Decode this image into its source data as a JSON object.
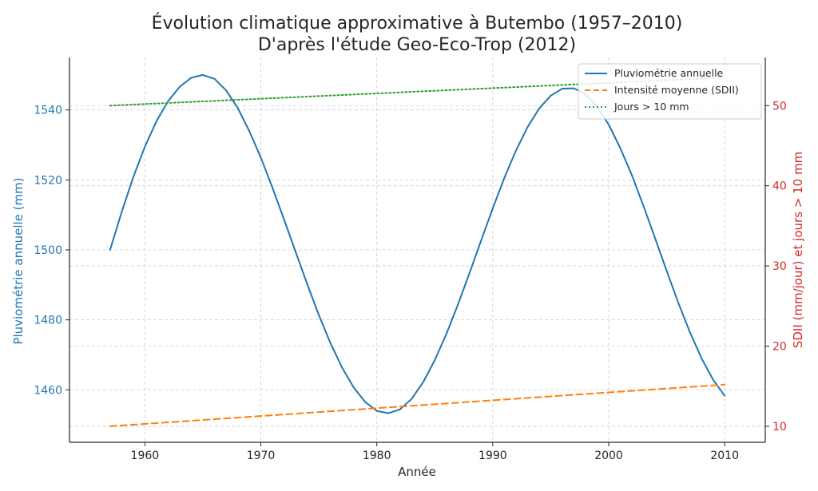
{
  "chart_data": {
    "type": "line",
    "title": "Évolution climatique approximative à Butembo (1957–2010)",
    "subtitle": "D'après l'étude Geo-Eco-Trop (2012)",
    "xlabel": "Année",
    "ylabel_left": "Pluviométrie annuelle (mm)",
    "ylabel_right": "SDII (mm/jour) et jours > 10 mm",
    "xlim": [
      1953.5,
      2013.5
    ],
    "ylim_left": [
      1445,
      1555
    ],
    "ylim_right": [
      8,
      56
    ],
    "x_ticks": [
      "1960",
      "1970",
      "1980",
      "1990",
      "2000",
      "2010"
    ],
    "y_left_ticks": [
      "1460",
      "1480",
      "1500",
      "1520",
      "1540"
    ],
    "y_right_ticks": [
      "10",
      "20",
      "30",
      "40",
      "50"
    ],
    "grid": true,
    "legend_position": "top-right",
    "colors": {
      "rainfall": "#1f77b4",
      "sdii": "#ff7f0e",
      "days": "#2ca02c",
      "left_axis": "#1f77b4",
      "right_axis": "#d62728"
    },
    "series": [
      {
        "name": "Pluviométrie annuelle",
        "axis": "left",
        "style": "solid",
        "x": [
          1957,
          1958,
          1959,
          1960,
          1961,
          1962,
          1963,
          1964,
          1965,
          1966,
          1967,
          1968,
          1969,
          1970,
          1971,
          1972,
          1973,
          1974,
          1975,
          1976,
          1977,
          1978,
          1979,
          1980,
          1981,
          1982,
          1983,
          1984,
          1985,
          1986,
          1987,
          1988,
          1989,
          1990,
          1991,
          1992,
          1993,
          1994,
          1995,
          1996,
          1997,
          1998,
          1999,
          2000,
          2001,
          2002,
          2003,
          2004,
          2005,
          2006,
          2007,
          2008,
          2009,
          2010
        ],
        "values": [
          1500,
          1510.8,
          1520.8,
          1529.5,
          1536.8,
          1542.5,
          1546.6,
          1549.2,
          1550.0,
          1548.9,
          1545.6,
          1540.6,
          1534.0,
          1526.4,
          1517.8,
          1508.7,
          1499.4,
          1490.2,
          1481.4,
          1473.4,
          1466.4,
          1460.7,
          1456.5,
          1454.0,
          1453.3,
          1454.4,
          1457.4,
          1462.2,
          1468.5,
          1476.0,
          1484.4,
          1493.4,
          1502.7,
          1511.9,
          1520.6,
          1528.4,
          1535.1,
          1540.4,
          1544.1,
          1546.1,
          1546.2,
          1544.5,
          1541.0,
          1535.8,
          1529.1,
          1521.3,
          1512.5,
          1503.3,
          1494.0,
          1484.9,
          1476.5,
          1469.0,
          1462.9,
          1458.3
        ]
      },
      {
        "name": "Intensité moyenne (SDII)",
        "axis": "right",
        "style": "dashed",
        "x": [
          1957,
          2010
        ],
        "values": [
          10,
          15.2
        ]
      },
      {
        "name": "Jours > 10 mm",
        "axis": "right",
        "style": "dotted",
        "x": [
          1957,
          2010
        ],
        "values": [
          50,
          53.5
        ]
      }
    ]
  }
}
